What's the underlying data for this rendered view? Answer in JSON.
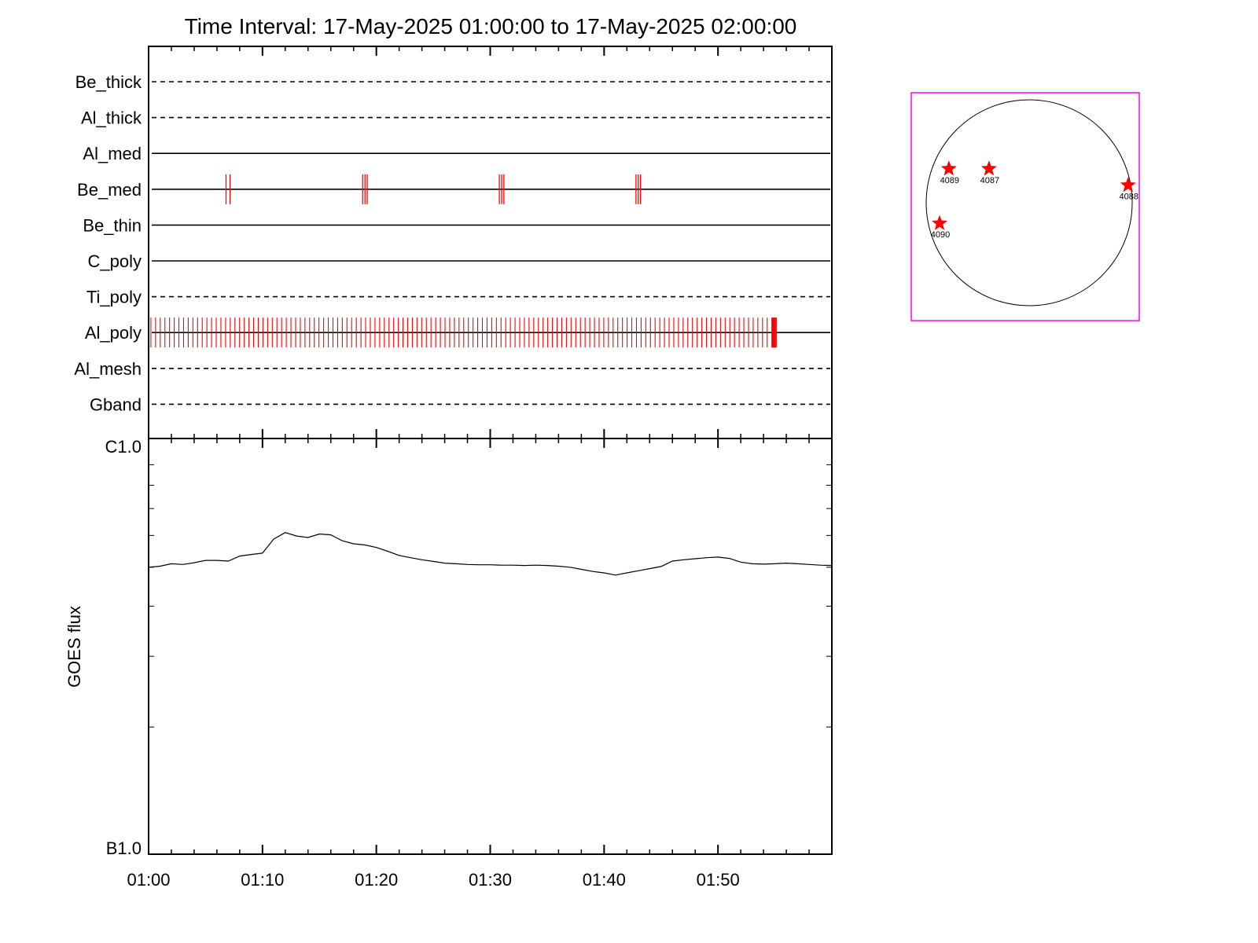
{
  "chart_data": {
    "type": "line",
    "title": "Time Interval: 17-May-2025 01:00:00 to 17-May-2025 02:00:00",
    "x_range": [
      "01:00",
      "02:00"
    ],
    "x_tick_labels": [
      "01:00",
      "01:10",
      "01:20",
      "01:30",
      "01:40",
      "01:50"
    ],
    "filters": [
      {
        "name": "Be_thick",
        "style": "dashed"
      },
      {
        "name": "Al_thick",
        "style": "dashed"
      },
      {
        "name": "Al_med",
        "style": "solid"
      },
      {
        "name": "Be_med",
        "style": "solid"
      },
      {
        "name": "Be_thin",
        "style": "solid"
      },
      {
        "name": "C_poly",
        "style": "solid"
      },
      {
        "name": "Ti_poly",
        "style": "dashed"
      },
      {
        "name": "Al_poly",
        "style": "solid"
      },
      {
        "name": "Al_mesh",
        "style": "dashed"
      },
      {
        "name": "Gband",
        "style": "dashed"
      }
    ],
    "exposures": {
      "Be_med": [
        {
          "start_min": 6.8,
          "count": 2,
          "spacing_min": 0.35
        },
        {
          "start_min": 18.8,
          "count": 3,
          "spacing_min": 0.2
        },
        {
          "start_min": 30.8,
          "count": 3,
          "spacing_min": 0.2
        },
        {
          "start_min": 42.8,
          "count": 3,
          "spacing_min": 0.2
        }
      ],
      "Al_poly": {
        "start_min": 0.2,
        "end_min": 55.2,
        "step_min": 0.41,
        "dense_end_min": 54.9
      }
    },
    "goes": {
      "ylabel": "GOES flux",
      "y_scale": "log",
      "y_tick_labels": [
        "C1.0",
        "B1.0"
      ],
      "ylim": [
        "1e-7",
        "1e-6"
      ],
      "series_color": "#000000",
      "x_min": [
        0,
        1,
        2,
        3,
        4,
        5,
        6,
        7,
        8,
        9,
        10,
        11,
        12,
        13,
        14,
        15,
        16,
        17,
        18,
        19,
        20,
        21,
        22,
        23,
        24,
        25,
        26,
        27,
        28,
        29,
        30,
        31,
        32,
        33,
        34,
        35,
        36,
        37,
        38,
        39,
        40,
        41,
        42,
        43,
        44,
        45,
        46,
        47,
        48,
        49,
        50,
        51,
        52,
        53,
        54,
        55,
        56,
        57,
        58,
        59,
        60
      ],
      "flux": [
        5e-07,
        5.03e-07,
        5.1e-07,
        5.08e-07,
        5.13e-07,
        5.2e-07,
        5.2e-07,
        5.18e-07,
        5.33e-07,
        5.38e-07,
        5.42e-07,
        5.88e-07,
        6.1e-07,
        5.98e-07,
        5.93e-07,
        6.05e-07,
        6.02e-07,
        5.82e-07,
        5.72e-07,
        5.68e-07,
        5.6e-07,
        5.48e-07,
        5.35e-07,
        5.28e-07,
        5.22e-07,
        5.17e-07,
        5.12e-07,
        5.1e-07,
        5.08e-07,
        5.07e-07,
        5.07e-07,
        5.06e-07,
        5.06e-07,
        5.05e-07,
        5.06e-07,
        5.05e-07,
        5.03e-07,
        5e-07,
        4.94e-07,
        4.88e-07,
        4.84e-07,
        4.78e-07,
        4.84e-07,
        4.9e-07,
        4.96e-07,
        5.02e-07,
        5.18e-07,
        5.22e-07,
        5.25e-07,
        5.28e-07,
        5.3e-07,
        5.26e-07,
        5.15e-07,
        5.1e-07,
        5.09e-07,
        5.1e-07,
        5.12e-07,
        5.1e-07,
        5.08e-07,
        5.06e-07,
        5.05e-07
      ]
    },
    "disk_map": {
      "frame_color": "#ff00ff",
      "marker_color": "#ff0000",
      "regions": [
        {
          "label": "4089",
          "pos": [
            -0.78,
            0.33
          ]
        },
        {
          "label": "4087",
          "pos": [
            -0.39,
            0.33
          ]
        },
        {
          "label": "4088",
          "pos": [
            0.96,
            0.17
          ]
        },
        {
          "label": "4090",
          "pos": [
            -0.87,
            -0.2
          ]
        }
      ]
    }
  }
}
